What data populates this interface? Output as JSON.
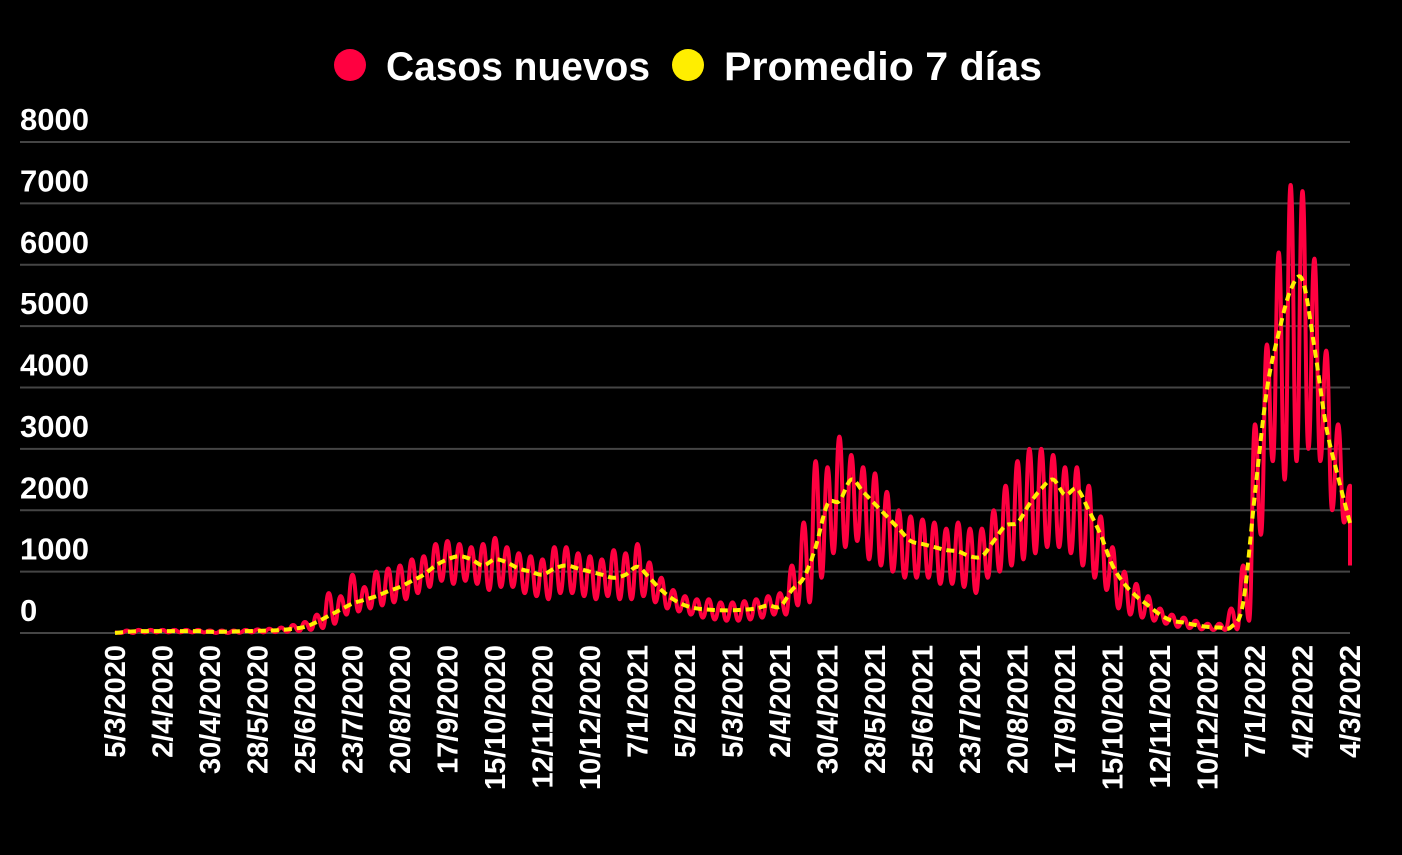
{
  "chart_data": {
    "type": "line",
    "title": "",
    "xlabel": "",
    "ylabel": "",
    "ylim": [
      0,
      8000
    ],
    "grid": true,
    "legend_position": "top-center",
    "y_ticks": [
      "0",
      "1000",
      "2000",
      "3000",
      "4000",
      "5000",
      "6000",
      "7000",
      "8000"
    ],
    "x_ticks": [
      "5/3/2020",
      "2/4/2020",
      "30/4/2020",
      "28/5/2020",
      "25/6/2020",
      "23/7/2020",
      "20/8/2020",
      "17/9/2020",
      "15/10/2020",
      "12/11/2020",
      "10/12/2020",
      "7/1/2021",
      "5/2/2021",
      "5/3/2021",
      "2/4/2021",
      "30/4/2021",
      "28/5/2021",
      "25/6/2021",
      "23/7/2021",
      "20/8/2021",
      "17/9/2021",
      "15/10/2021",
      "12/11/2021",
      "10/12/2021",
      "7/1/2022",
      "4/2/2022",
      "4/3/2022"
    ],
    "dates": [
      "5/3/2020",
      "12/3/2020",
      "19/3/2020",
      "26/3/2020",
      "2/4/2020",
      "9/4/2020",
      "16/4/2020",
      "23/4/2020",
      "30/4/2020",
      "7/5/2020",
      "14/5/2020",
      "21/5/2020",
      "28/5/2020",
      "4/6/2020",
      "11/6/2020",
      "18/6/2020",
      "25/6/2020",
      "2/7/2020",
      "9/7/2020",
      "16/7/2020",
      "23/7/2020",
      "30/7/2020",
      "6/8/2020",
      "13/8/2020",
      "20/8/2020",
      "27/8/2020",
      "3/9/2020",
      "10/9/2020",
      "17/9/2020",
      "24/9/2020",
      "1/10/2020",
      "8/10/2020",
      "15/10/2020",
      "22/10/2020",
      "29/10/2020",
      "5/11/2020",
      "12/11/2020",
      "19/11/2020",
      "26/11/2020",
      "3/12/2020",
      "10/12/2020",
      "17/12/2020",
      "24/12/2020",
      "31/12/2020",
      "7/1/2021",
      "14/1/2021",
      "21/1/2021",
      "28/1/2021",
      "4/2/2021",
      "11/2/2021",
      "18/2/2021",
      "25/2/2021",
      "4/3/2021",
      "11/3/2021",
      "18/3/2021",
      "25/3/2021",
      "1/4/2021",
      "8/4/2021",
      "15/4/2021",
      "22/4/2021",
      "29/4/2021",
      "6/5/2021",
      "13/5/2021",
      "20/5/2021",
      "27/5/2021",
      "3/6/2021",
      "10/6/2021",
      "17/6/2021",
      "24/6/2021",
      "1/7/2021",
      "8/7/2021",
      "15/7/2021",
      "22/7/2021",
      "29/7/2021",
      "5/8/2021",
      "12/8/2021",
      "19/8/2021",
      "26/8/2021",
      "2/9/2021",
      "9/9/2021",
      "16/9/2021",
      "23/9/2021",
      "30/9/2021",
      "7/10/2021",
      "14/10/2021",
      "21/10/2021",
      "28/10/2021",
      "4/11/2021",
      "11/11/2021",
      "18/11/2021",
      "25/11/2021",
      "2/12/2021",
      "9/12/2021",
      "16/12/2021",
      "23/12/2021",
      "30/12/2021",
      "6/1/2022",
      "13/1/2022",
      "20/1/2022",
      "27/1/2022",
      "3/2/2022",
      "10/2/2022",
      "17/2/2022",
      "24/2/2022",
      "3/3/2022"
    ],
    "series": [
      {
        "name": "Casos nuevos",
        "color": "#ff0040",
        "weekly_high": [
          10,
          40,
          50,
          50,
          50,
          50,
          50,
          50,
          40,
          40,
          40,
          50,
          60,
          70,
          90,
          130,
          180,
          300,
          650,
          600,
          950,
          750,
          1000,
          1050,
          1100,
          1200,
          1250,
          1450,
          1500,
          1450,
          1400,
          1450,
          1550,
          1400,
          1300,
          1250,
          1200,
          1400,
          1400,
          1300,
          1250,
          1200,
          1350,
          1300,
          1450,
          1150,
          900,
          700,
          600,
          550,
          550,
          500,
          500,
          520,
          550,
          600,
          650,
          1100,
          1800,
          2800,
          2700,
          3200,
          2900,
          2700,
          2600,
          2300,
          2000,
          1900,
          1850,
          1800,
          1700,
          1800,
          1700,
          1700,
          2000,
          2400,
          2800,
          3000,
          3000,
          2900,
          2700,
          2700,
          2400,
          1900,
          1400,
          1000,
          800,
          600,
          400,
          300,
          250,
          200,
          150,
          150,
          400,
          1100,
          3400,
          4700,
          6200,
          7300,
          7200,
          6100,
          4600,
          3400,
          2400
        ],
        "weekly_low": [
          0,
          0,
          10,
          10,
          10,
          10,
          10,
          10,
          0,
          0,
          5,
          10,
          10,
          15,
          20,
          30,
          50,
          80,
          150,
          300,
          350,
          400,
          450,
          500,
          550,
          650,
          750,
          850,
          800,
          850,
          800,
          700,
          750,
          750,
          650,
          600,
          550,
          650,
          650,
          600,
          550,
          600,
          550,
          550,
          600,
          500,
          400,
          350,
          300,
          250,
          220,
          200,
          200,
          220,
          250,
          300,
          300,
          450,
          500,
          900,
          1300,
          1400,
          1500,
          1200,
          1100,
          1000,
          900,
          900,
          900,
          800,
          800,
          750,
          650,
          900,
          1000,
          1100,
          1200,
          1300,
          1400,
          1400,
          1300,
          1100,
          900,
          700,
          400,
          300,
          250,
          200,
          150,
          100,
          80,
          60,
          50,
          50,
          60,
          200,
          1600,
          2800,
          2500,
          2800,
          3000,
          2800,
          2000,
          1800,
          1100
        ]
      },
      {
        "name": "Promedio 7 días",
        "color": "#ffee00",
        "values": [
          0,
          20,
          30,
          30,
          30,
          30,
          30,
          30,
          20,
          20,
          25,
          30,
          35,
          40,
          50,
          70,
          100,
          180,
          280,
          380,
          480,
          540,
          600,
          680,
          750,
          850,
          950,
          1100,
          1200,
          1250,
          1200,
          1100,
          1200,
          1150,
          1050,
          1000,
          950,
          1050,
          1100,
          1050,
          1000,
          950,
          900,
          950,
          1080,
          900,
          700,
          550,
          450,
          400,
          380,
          370,
          370,
          380,
          400,
          450,
          430,
          700,
          900,
          1400,
          2100,
          2150,
          2500,
          2300,
          2100,
          1900,
          1700,
          1500,
          1450,
          1400,
          1350,
          1330,
          1250,
          1250,
          1500,
          1750,
          1800,
          2100,
          2350,
          2500,
          2250,
          2350,
          2000,
          1600,
          1100,
          800,
          600,
          450,
          300,
          200,
          170,
          130,
          100,
          90,
          100,
          490,
          2280,
          3960,
          4890,
          5590,
          5750,
          4660,
          3360,
          2540,
          1790
        ]
      }
    ]
  }
}
